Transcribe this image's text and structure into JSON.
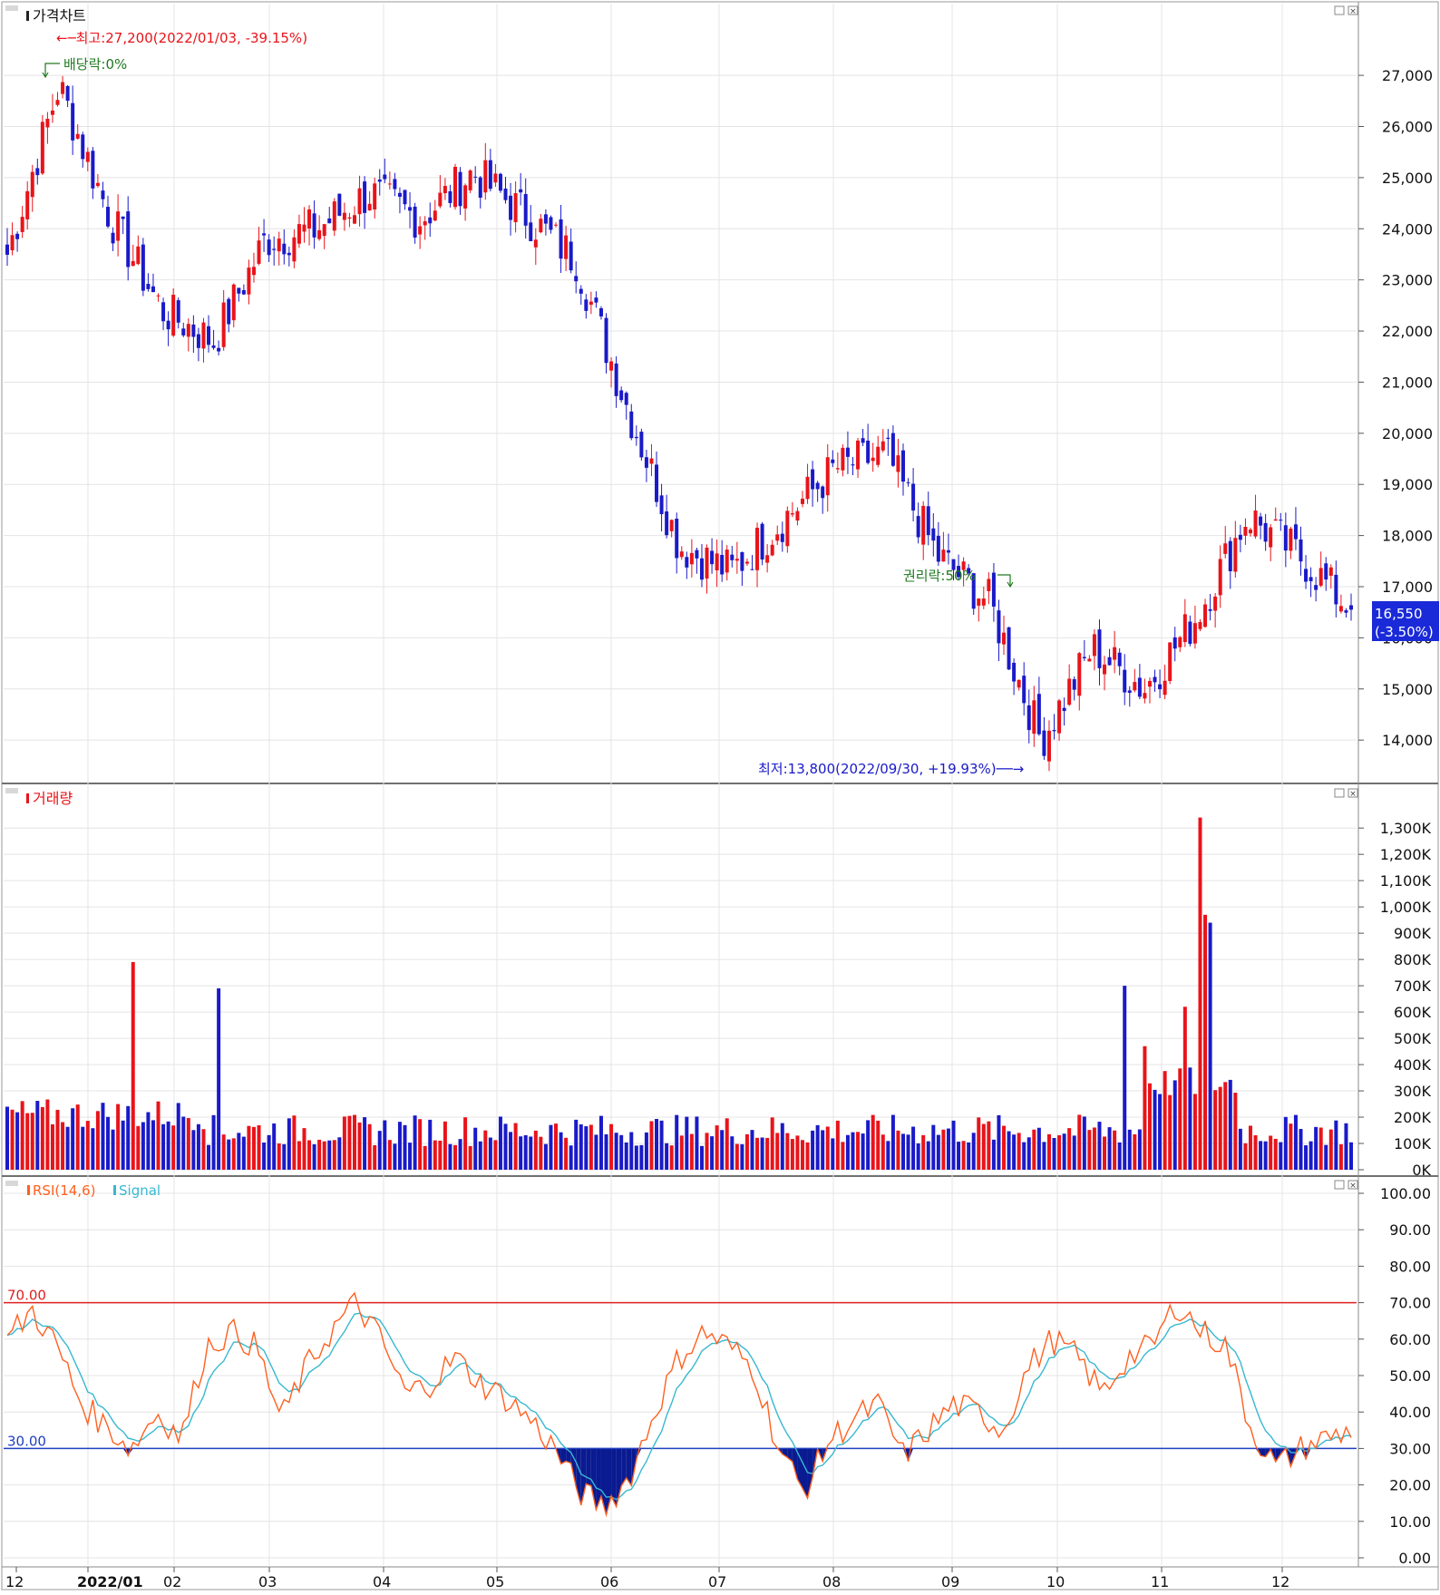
{
  "chart_data": {
    "type": "candlestick",
    "panels": [
      {
        "id": "price",
        "title": "가격차트",
        "y_ticks": [
          14000,
          15000,
          16000,
          17000,
          18000,
          19000,
          20000,
          21000,
          22000,
          23000,
          24000,
          25000,
          26000,
          27000
        ],
        "ylim": [
          13400,
          27800
        ],
        "current": {
          "value_label": "16,550",
          "change_label": "(-3.50%)",
          "value": 16550
        },
        "annotations": {
          "high": {
            "text": "←─최고:27,200(2022/01/03, -39.15%)",
            "value": 27200
          },
          "low": {
            "text": "최저:13,800(2022/09/30, +19.93%)──→",
            "value": 13800
          },
          "dividend": {
            "text": "배당락:0%"
          },
          "rights": {
            "text": "권리락:50%"
          }
        },
        "monthly_path": [
          [
            "2021/12",
            23500
          ],
          [
            "2022/01 early",
            26800
          ],
          [
            "2022/01 mid",
            24200
          ],
          [
            "2022/01 end",
            22400
          ],
          [
            "2022/02",
            21800
          ],
          [
            "2022/02 end",
            23800
          ],
          [
            "2022/03",
            24000
          ],
          [
            "2022/03 end",
            24700
          ],
          [
            "2022/04",
            24200
          ],
          [
            "2022/04 mid",
            25100
          ],
          [
            "2022/05",
            24300
          ],
          [
            "2022/05 end",
            23400
          ],
          [
            "2022/06",
            20500
          ],
          [
            "2022/06 mid",
            17800
          ],
          [
            "2022/06 end",
            17300
          ],
          [
            "2022/07",
            18300
          ],
          [
            "2022/07 mid",
            19300
          ],
          [
            "2022/08",
            19600
          ],
          [
            "2022/08 mid",
            17600
          ],
          [
            "2022/09",
            16700
          ],
          [
            "2022/09 end",
            14000
          ],
          [
            "2022/10",
            15800
          ],
          [
            "2022/10 mid",
            15000
          ],
          [
            "2022/11",
            16400
          ],
          [
            "2022/11 mid",
            18400
          ],
          [
            "2022/12",
            17600
          ],
          [
            "2022/12 end",
            16550
          ]
        ]
      },
      {
        "id": "volume",
        "title": "거래량",
        "y_ticks": [
          "0K",
          "100K",
          "200K",
          "300K",
          "400K",
          "500K",
          "600K",
          "700K",
          "800K",
          "900K",
          "1,000K",
          "1,100K",
          "1,200K",
          "1,300K"
        ],
        "ylim": [
          0,
          1380000
        ],
        "spikes": [
          {
            "month": "2022/01",
            "value": 790000
          },
          {
            "month": "2022/02",
            "value": 690000
          },
          {
            "month": "2022/10",
            "value": 700000
          },
          {
            "month": "2022/11",
            "value": 1340000
          }
        ]
      },
      {
        "id": "rsi",
        "title": "RSI(14,6)",
        "signal_title": "Signal",
        "y_ticks": [
          "0.00",
          "10.00",
          "20.00",
          "30.00",
          "40.00",
          "50.00",
          "60.00",
          "70.00",
          "80.00",
          "90.00",
          "100.00"
        ],
        "ylim": [
          0,
          100
        ],
        "upper_line": {
          "label": "70.00",
          "value": 70
        },
        "lower_line": {
          "label": "30.00",
          "value": 30
        }
      }
    ],
    "x_ticks": [
      {
        "label": "12",
        "bold": false
      },
      {
        "label": "2022/01",
        "bold": true
      },
      {
        "label": "02",
        "bold": false
      },
      {
        "label": "03",
        "bold": false
      },
      {
        "label": "04",
        "bold": false
      },
      {
        "label": "05",
        "bold": false
      },
      {
        "label": "06",
        "bold": false
      },
      {
        "label": "07",
        "bold": false
      },
      {
        "label": "08",
        "bold": false
      },
      {
        "label": "09",
        "bold": false
      },
      {
        "label": "10",
        "bold": false
      },
      {
        "label": "11",
        "bold": false
      },
      {
        "label": "12",
        "bold": false
      }
    ],
    "grid": true
  },
  "colors": {
    "up": "#e8141a",
    "down": "#1a1ac8",
    "rsi_line": "#ff6020",
    "signal_line": "#38b8d0",
    "upper_line": "#e02020",
    "lower_line": "#2040c0",
    "rsi_fill": "#0a1a90",
    "dividend": "#207a20",
    "current_bg": "#1a2ad8"
  }
}
